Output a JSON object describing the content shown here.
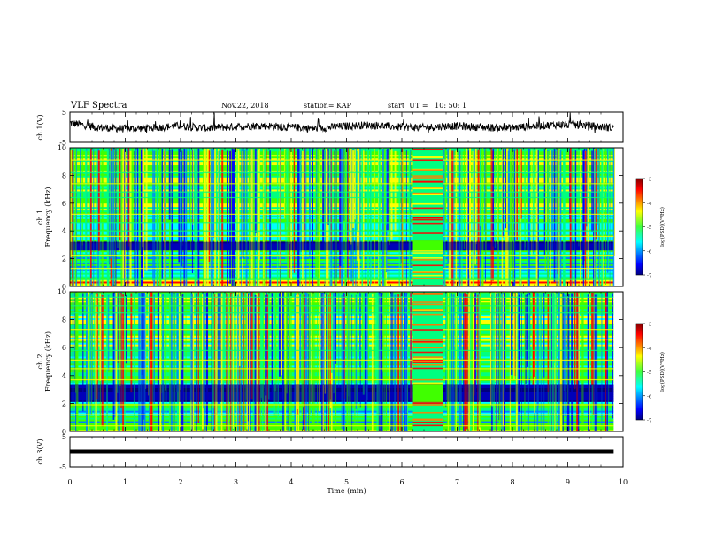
{
  "header": {
    "title": "VLF Spectra",
    "date": "Nov.22, 2018",
    "station": "station= KAP",
    "start": "start  UT =   10: 50: 1"
  },
  "chart_data": [
    {
      "type": "line",
      "name": "ch1-waveform",
      "ylabel": "ch.1(V)",
      "ylim": [
        -5,
        5
      ],
      "yticks": [
        "5",
        "-5"
      ],
      "xlim": [
        0,
        9.83
      ],
      "trace_level_approx": [
        1.5,
        0.0,
        -0.5,
        -0.2,
        0.5,
        -0.3,
        0.2,
        0.6,
        0.1,
        -0.4,
        0.3,
        0.8,
        0.2,
        -0.1,
        0.5,
        0.1,
        -0.3,
        0.4,
        0.9,
        0.6,
        -0.2
      ]
    },
    {
      "type": "heatmap",
      "name": "ch1-spectrogram",
      "ylabel": "ch.1\nFrequency  (kHz)",
      "ylim": [
        0,
        10
      ],
      "yticks": [
        "0",
        "2",
        "4",
        "6",
        "8",
        "10"
      ],
      "xlim": [
        0,
        9.83
      ],
      "colorbar": {
        "label": "log(PSD)(V²/Hz)",
        "range": [
          -7,
          -3
        ],
        "ticks": [
          "-3",
          "-4",
          "-5",
          "-6",
          "-7"
        ]
      },
      "quiet_band_khz": [
        2.6,
        3.2
      ],
      "disturbed_interval_min": [
        6.2,
        6.75
      ]
    },
    {
      "type": "heatmap",
      "name": "ch2-spectrogram",
      "ylabel": "ch.2\nFrequency  (kHz)",
      "ylim": [
        0,
        10
      ],
      "yticks": [
        "0",
        "2",
        "4",
        "6",
        "8",
        "10"
      ],
      "xlim": [
        0,
        9.83
      ],
      "colorbar": {
        "label": "log(PSD)(V²/Hz)",
        "range": [
          -7,
          -3
        ],
        "ticks": [
          "-3",
          "-4",
          "-5",
          "-6",
          "-7"
        ]
      },
      "quiet_band_khz": [
        2.1,
        3.4
      ],
      "disturbed_interval_min": [
        6.2,
        6.75
      ]
    },
    {
      "type": "line",
      "name": "ch3-waveform",
      "ylabel": "ch.3(V)",
      "ylim": [
        -5,
        5
      ],
      "yticks": [
        "5",
        "-5"
      ],
      "xlim": [
        0,
        9.83
      ],
      "constant_level_v": 0
    }
  ],
  "xaxis": {
    "label": "Time  (min)",
    "ticks": [
      "0",
      "1",
      "2",
      "3",
      "4",
      "5",
      "6",
      "7",
      "8",
      "9",
      "10"
    ],
    "range": [
      0,
      10
    ]
  },
  "colors": {
    "palette": [
      "#00007f",
      "#0000ff",
      "#0080ff",
      "#00ffff",
      "#00ff80",
      "#40ff00",
      "#ffff00",
      "#ff8000",
      "#ff0000",
      "#7f0000"
    ]
  }
}
